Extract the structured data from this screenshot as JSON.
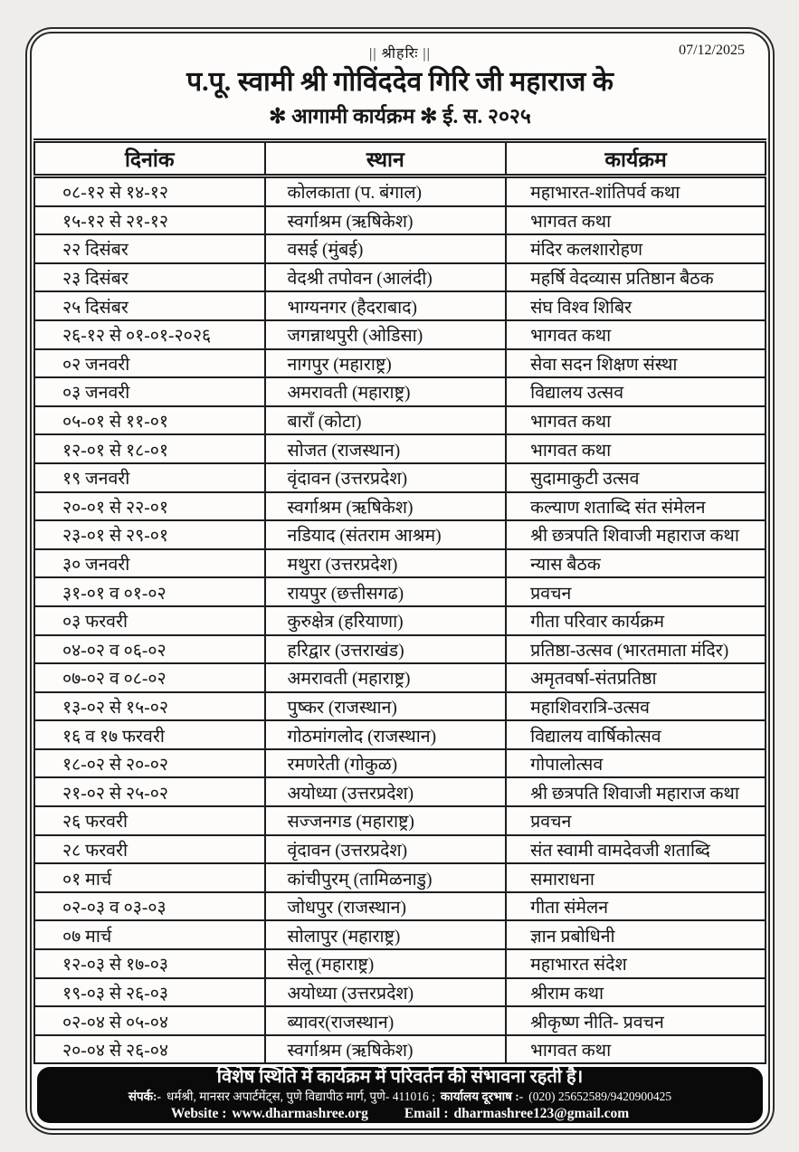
{
  "header": {
    "invocation": "|| श्रीहरिः ||",
    "date": "07/12/2025",
    "title": "प.पू. स्वामी श्री गोविंददेव गिरि जी महाराज के",
    "subtitle": "✻ आगामी कार्यक्रम ✻  ई. स. २०२५"
  },
  "table": {
    "columns": [
      "दिनांक",
      "स्थान",
      "कार्यक्रम"
    ],
    "rows": [
      [
        "०८-१२ से १४-१२",
        "कोलकाता (प. बंगाल)",
        "महाभारत-शांतिपर्व कथा"
      ],
      [
        "१५-१२ से २१-१२",
        "स्वर्गाश्रम (ऋषिकेश)",
        "भागवत कथा"
      ],
      [
        "२२ दिसंबर",
        "वसई (मुंबई)",
        "मंदिर कलशारोहण"
      ],
      [
        "२३ दिसंबर",
        "वेदश्री तपोवन (आलंदी)",
        "महर्षि वेदव्यास प्रतिष्ठान बैठक"
      ],
      [
        "२५ दिसंबर",
        "भाग्यनगर (हैदराबाद)",
        "संघ विश्व शिबिर"
      ],
      [
        "२६-१२ से ०१-०१-२०२६",
        "जगन्नाथपुरी (ओडिसा)",
        "भागवत कथा"
      ],
      [
        "०२ जनवरी",
        "नागपुर (महाराष्ट्र)",
        "सेवा सदन शिक्षण संस्था"
      ],
      [
        "०३ जनवरी",
        "अमरावती (महाराष्ट्र)",
        "विद्यालय उत्सव"
      ],
      [
        "०५-०१ से ११-०१",
        "बाराँ (कोटा)",
        "भागवत कथा"
      ],
      [
        "१२-०१ से १८-०१",
        "सोजत (राजस्थान)",
        "भागवत कथा"
      ],
      [
        "१९ जनवरी",
        "वृंदावन (उत्तरप्रदेश)",
        "सुदामाकुटी उत्सव"
      ],
      [
        "२०-०१ से २२-०१",
        "स्वर्गाश्रम (ऋषिकेश)",
        "कल्याण शताब्दि संत संमेलन"
      ],
      [
        "२३-०१ से २९-०१",
        "नडियाद (संतराम आश्रम)",
        "श्री छत्रपति शिवाजी महाराज कथा"
      ],
      [
        "३० जनवरी",
        "मथुरा (उत्तरप्रदेश)",
        "न्यास बैठक"
      ],
      [
        "३१-०१ व ०१-०२",
        "रायपुर (छत्तीसगढ)",
        "प्रवचन"
      ],
      [
        "०३ फरवरी",
        "कुरुक्षेत्र (हरियाणा)",
        "गीता परिवार कार्यक्रम"
      ],
      [
        "०४-०२ व ०६-०२",
        "हरिद्वार (उत्तराखंड)",
        "प्रतिष्ठा-उत्सव (भारतमाता मंदिर)"
      ],
      [
        "०७-०२ व ०८-०२",
        "अमरावती (महाराष्ट्र)",
        "अमृतवर्षा-संतप्रतिष्ठा"
      ],
      [
        "१३-०२ से १५-०२",
        "पुष्कर (राजस्थान)",
        "महाशिवरात्रि-उत्सव"
      ],
      [
        "१६ व १७ फरवरी",
        "गोठमांगलोद (राजस्थान)",
        "विद्यालय वार्षिकोत्सव"
      ],
      [
        "१८-०२ से २०-०२",
        "रमणरेती (गोकुळ)",
        "गोपालोत्सव"
      ],
      [
        "२१-०२ से २५-०२",
        "अयोध्या (उत्तरप्रदेश)",
        "श्री छत्रपति शिवाजी महाराज कथा"
      ],
      [
        "२६ फरवरी",
        "सज्जनगड (महाराष्ट्र)",
        "प्रवचन"
      ],
      [
        "२८ फरवरी",
        "वृंदावन (उत्तरप्रदेश)",
        "संत स्वामी वामदेवजी शताब्दि"
      ],
      [
        "०१ मार्च",
        "कांचीपुरम् (तामिळनाडु)",
        "समाराधना"
      ],
      [
        "०२-०३ व ०३-०३",
        "जोधपुर (राजस्थान)",
        "गीता संमेलन"
      ],
      [
        "०७ मार्च",
        "सोलापुर (महाराष्ट्र)",
        "ज्ञान प्रबोधिनी"
      ],
      [
        "१२-०३ से १७-०३",
        "सेलू (महाराष्ट्र)",
        "महाभारत संदेश"
      ],
      [
        "१९-०३ से २६-०३",
        "अयोध्या (उत्तरप्रदेश)",
        "श्रीराम कथा"
      ],
      [
        "०२-०४ से ०५-०४",
        "ब्यावर(राजस्थान)",
        "श्रीकृष्ण नीति- प्रवचन"
      ],
      [
        "२०-०४ से २६-०४",
        "स्वर्गाश्रम (ऋषिकेश)",
        "भागवत कथा"
      ]
    ]
  },
  "footer": {
    "note": "विशेष स्थिति में कार्यक्रम में परिवर्तन की संभावना रहती है।",
    "contact_label": "संपर्क:-",
    "contact": "धर्मश्री, मानसर अपार्टमेंट्स, पुणे विद्यापीठ मार्ग, पुणे- 411016 ;",
    "phone_label": "कार्यालय दूरभाष :-",
    "phone": "(020) 25652589/9420900425",
    "website_label": "Website :",
    "website": "www.dharmashree.org",
    "email_label": "Email :",
    "email": "dharmashree123@gmail.com"
  },
  "colors": {
    "page_bg": "#efede9",
    "paper": "#fdfcfb",
    "border": "#1d1d1d",
    "footer_bg": "#0a0a0a",
    "footer_text": "#ffffff",
    "text": "#161616"
  }
}
